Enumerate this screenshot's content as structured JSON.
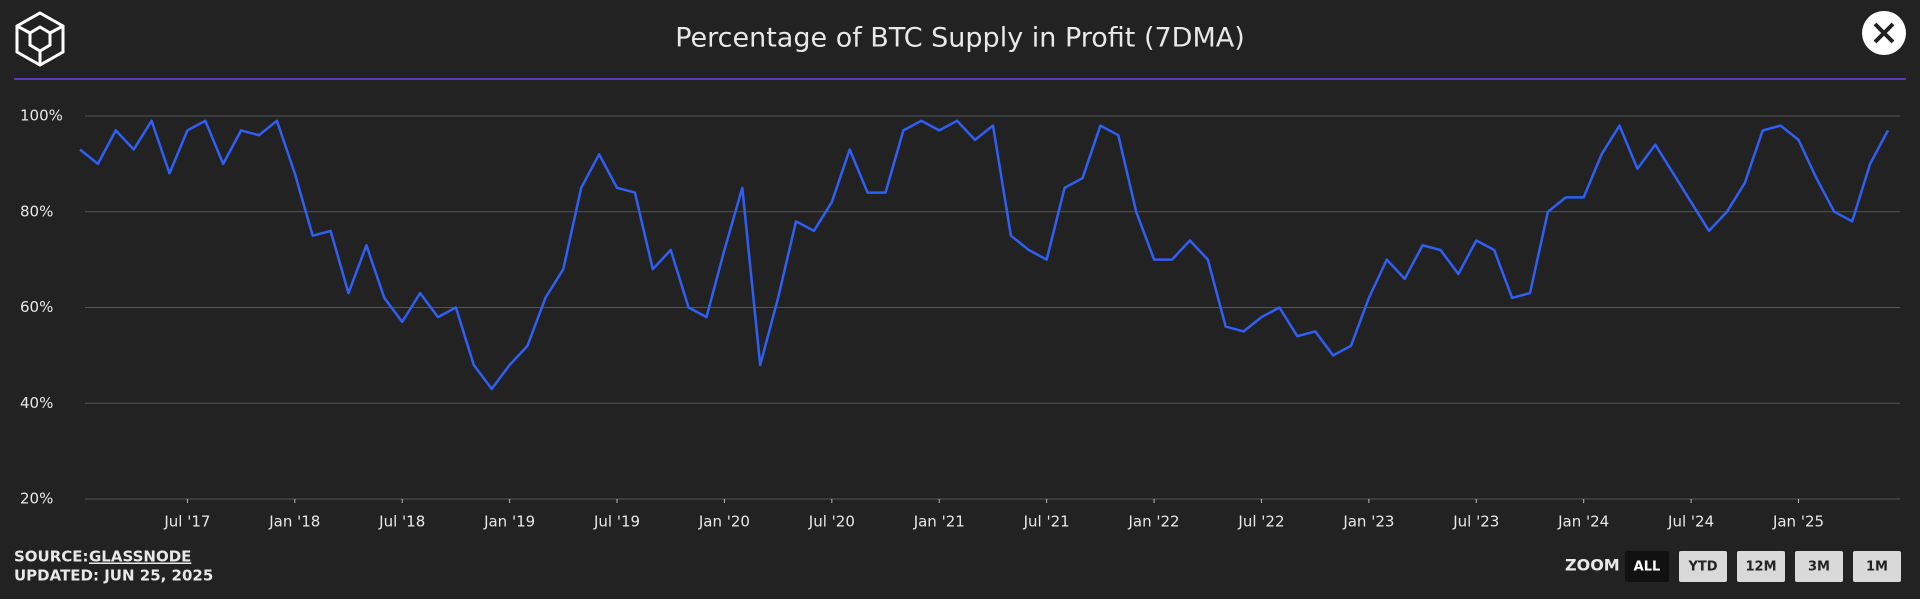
{
  "header": {
    "title": "Percentage of BTC Supply in Profit (7DMA)"
  },
  "footer": {
    "source_label": "SOURCE:",
    "source_name": "GLASSNODE",
    "updated": "UPDATED: JUN 25, 2025",
    "zoom_label": "ZOOM",
    "zoom_buttons": [
      "ALL",
      "YTD",
      "12M",
      "3M",
      "1M"
    ]
  },
  "chart_data": {
    "type": "line",
    "color": "#2f5ff5",
    "grid": true,
    "ylim": [
      20,
      100
    ],
    "yticks": [
      {
        "value": 20,
        "label": "20%"
      },
      {
        "value": 40,
        "label": "40%"
      },
      {
        "value": 60,
        "label": "60%"
      },
      {
        "value": 80,
        "label": "80%"
      },
      {
        "value": 100,
        "label": "100%"
      }
    ],
    "xlim": [
      "2017-01",
      "2025-06"
    ],
    "xticks": [
      {
        "value": "2017-07",
        "label": "Jul '17"
      },
      {
        "value": "2018-01",
        "label": "Jan '18"
      },
      {
        "value": "2018-07",
        "label": "Jul '18"
      },
      {
        "value": "2019-01",
        "label": "Jan '19"
      },
      {
        "value": "2019-07",
        "label": "Jul '19"
      },
      {
        "value": "2020-01",
        "label": "Jan '20"
      },
      {
        "value": "2020-07",
        "label": "Jul '20"
      },
      {
        "value": "2021-01",
        "label": "Jan '21"
      },
      {
        "value": "2021-07",
        "label": "Jul '21"
      },
      {
        "value": "2022-01",
        "label": "Jan '22"
      },
      {
        "value": "2022-07",
        "label": "Jul '22"
      },
      {
        "value": "2023-01",
        "label": "Jan '23"
      },
      {
        "value": "2023-07",
        "label": "Jul '23"
      },
      {
        "value": "2024-01",
        "label": "Jan '24"
      },
      {
        "value": "2024-07",
        "label": "Jul '24"
      },
      {
        "value": "2025-01",
        "label": "Jan '25"
      }
    ],
    "x": [
      "2017-01",
      "2017-02",
      "2017-03",
      "2017-04",
      "2017-05",
      "2017-06",
      "2017-07",
      "2017-08",
      "2017-09",
      "2017-10",
      "2017-11",
      "2017-12",
      "2018-01",
      "2018-02",
      "2018-03",
      "2018-04",
      "2018-05",
      "2018-06",
      "2018-07",
      "2018-08",
      "2018-09",
      "2018-10",
      "2018-11",
      "2018-12",
      "2019-01",
      "2019-02",
      "2019-03",
      "2019-04",
      "2019-05",
      "2019-06",
      "2019-07",
      "2019-08",
      "2019-09",
      "2019-10",
      "2019-11",
      "2019-12",
      "2020-01",
      "2020-02",
      "2020-03",
      "2020-04",
      "2020-05",
      "2020-06",
      "2020-07",
      "2020-08",
      "2020-09",
      "2020-10",
      "2020-11",
      "2020-12",
      "2021-01",
      "2021-02",
      "2021-03",
      "2021-04",
      "2021-05",
      "2021-06",
      "2021-07",
      "2021-08",
      "2021-09",
      "2021-10",
      "2021-11",
      "2021-12",
      "2022-01",
      "2022-02",
      "2022-03",
      "2022-04",
      "2022-05",
      "2022-06",
      "2022-07",
      "2022-08",
      "2022-09",
      "2022-10",
      "2022-11",
      "2022-12",
      "2023-01",
      "2023-02",
      "2023-03",
      "2023-04",
      "2023-05",
      "2023-06",
      "2023-07",
      "2023-08",
      "2023-09",
      "2023-10",
      "2023-11",
      "2023-12",
      "2024-01",
      "2024-02",
      "2024-03",
      "2024-04",
      "2024-05",
      "2024-06",
      "2024-07",
      "2024-08",
      "2024-09",
      "2024-10",
      "2024-11",
      "2024-12",
      "2025-01",
      "2025-02",
      "2025-03",
      "2025-04",
      "2025-05",
      "2025-06"
    ],
    "values": [
      93,
      90,
      97,
      93,
      99,
      88,
      97,
      99,
      90,
      97,
      96,
      99,
      88,
      75,
      76,
      63,
      73,
      62,
      57,
      63,
      58,
      60,
      48,
      43,
      48,
      52,
      62,
      68,
      85,
      92,
      85,
      84,
      68,
      72,
      60,
      58,
      72,
      85,
      48,
      62,
      78,
      76,
      82,
      93,
      84,
      84,
      97,
      99,
      97,
      99,
      95,
      98,
      75,
      72,
      70,
      85,
      87,
      98,
      96,
      80,
      70,
      70,
      74,
      70,
      56,
      55,
      58,
      60,
      54,
      55,
      50,
      52,
      62,
      70,
      66,
      73,
      72,
      67,
      74,
      72,
      62,
      63,
      80,
      83,
      83,
      92,
      98,
      89,
      94,
      88,
      82,
      76,
      80,
      86,
      97,
      98,
      95,
      87,
      80,
      78,
      90,
      97
    ]
  }
}
